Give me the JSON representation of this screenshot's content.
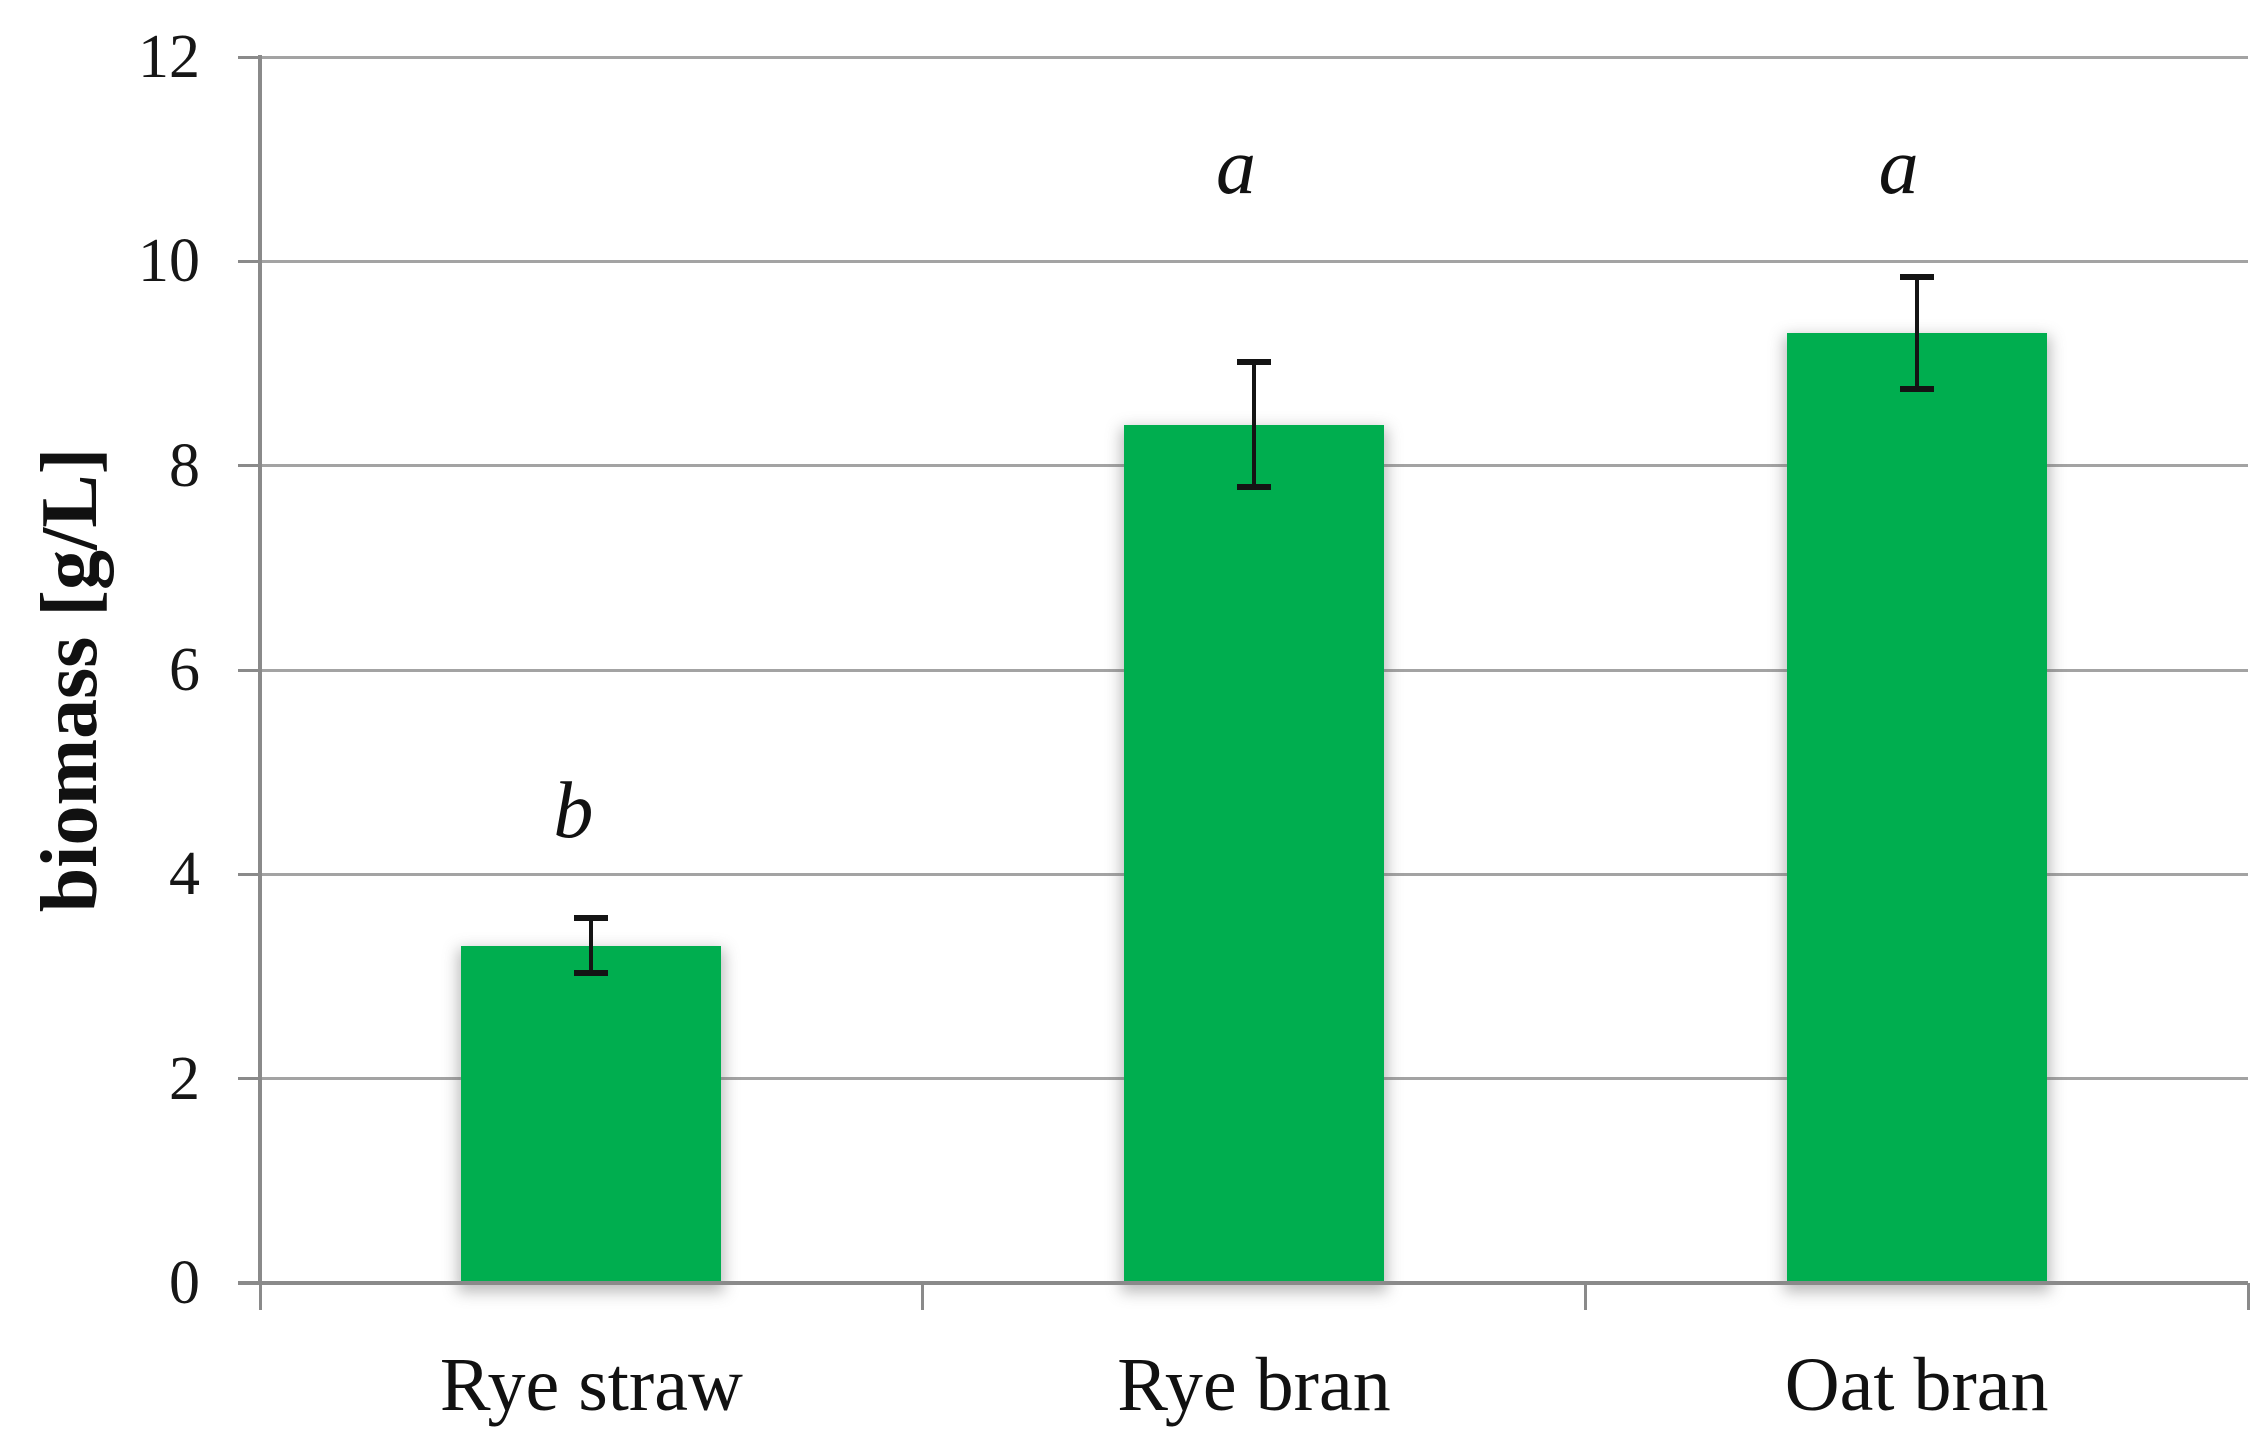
{
  "chart_data": {
    "type": "bar",
    "title": "",
    "categories": [
      "Rye straw",
      "Rye bran",
      "Oat bran"
    ],
    "values": [
      3.3,
      8.4,
      9.3
    ],
    "error_bars": [
      0.27,
      0.61,
      0.55
    ],
    "significance_letters": [
      "b",
      "a",
      "a"
    ],
    "significance_letter_y": [
      4.6,
      10.9,
      10.9
    ],
    "xlabel": "",
    "ylabel": "biomass [g/L]",
    "yticks": [
      0,
      2,
      4,
      6,
      8,
      10,
      12
    ],
    "ylim": [
      0,
      12
    ],
    "grid": true,
    "legend": false,
    "colors": {
      "bar_fill": "#00AE4F",
      "gridline": "#A3A3A3",
      "axis": "#8A8A8A",
      "error_bar": "#141414",
      "text": "#111111"
    }
  }
}
